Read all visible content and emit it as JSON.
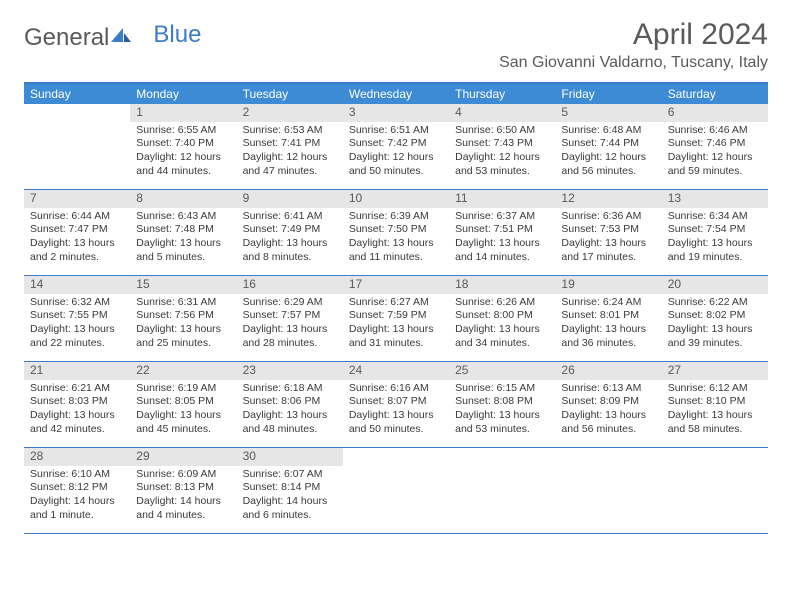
{
  "logo": {
    "text1": "General",
    "text2": "Blue"
  },
  "title": "April 2024",
  "location": "San Giovanni Valdarno, Tuscany, Italy",
  "colors": {
    "header_bar": "#3d8bd4",
    "border": "#3d7cc9",
    "daynum_bg": "#e6e6e6",
    "text_gray": "#5a5a5a",
    "body_text": "#3a3a3a",
    "white": "#ffffff"
  },
  "weekdays": [
    "Sunday",
    "Monday",
    "Tuesday",
    "Wednesday",
    "Thursday",
    "Friday",
    "Saturday"
  ],
  "weeks": [
    [
      null,
      {
        "n": "1",
        "sr": "6:55 AM",
        "ss": "7:40 PM",
        "dl": "12 hours and 44 minutes."
      },
      {
        "n": "2",
        "sr": "6:53 AM",
        "ss": "7:41 PM",
        "dl": "12 hours and 47 minutes."
      },
      {
        "n": "3",
        "sr": "6:51 AM",
        "ss": "7:42 PM",
        "dl": "12 hours and 50 minutes."
      },
      {
        "n": "4",
        "sr": "6:50 AM",
        "ss": "7:43 PM",
        "dl": "12 hours and 53 minutes."
      },
      {
        "n": "5",
        "sr": "6:48 AM",
        "ss": "7:44 PM",
        "dl": "12 hours and 56 minutes."
      },
      {
        "n": "6",
        "sr": "6:46 AM",
        "ss": "7:46 PM",
        "dl": "12 hours and 59 minutes."
      }
    ],
    [
      {
        "n": "7",
        "sr": "6:44 AM",
        "ss": "7:47 PM",
        "dl": "13 hours and 2 minutes."
      },
      {
        "n": "8",
        "sr": "6:43 AM",
        "ss": "7:48 PM",
        "dl": "13 hours and 5 minutes."
      },
      {
        "n": "9",
        "sr": "6:41 AM",
        "ss": "7:49 PM",
        "dl": "13 hours and 8 minutes."
      },
      {
        "n": "10",
        "sr": "6:39 AM",
        "ss": "7:50 PM",
        "dl": "13 hours and 11 minutes."
      },
      {
        "n": "11",
        "sr": "6:37 AM",
        "ss": "7:51 PM",
        "dl": "13 hours and 14 minutes."
      },
      {
        "n": "12",
        "sr": "6:36 AM",
        "ss": "7:53 PM",
        "dl": "13 hours and 17 minutes."
      },
      {
        "n": "13",
        "sr": "6:34 AM",
        "ss": "7:54 PM",
        "dl": "13 hours and 19 minutes."
      }
    ],
    [
      {
        "n": "14",
        "sr": "6:32 AM",
        "ss": "7:55 PM",
        "dl": "13 hours and 22 minutes."
      },
      {
        "n": "15",
        "sr": "6:31 AM",
        "ss": "7:56 PM",
        "dl": "13 hours and 25 minutes."
      },
      {
        "n": "16",
        "sr": "6:29 AM",
        "ss": "7:57 PM",
        "dl": "13 hours and 28 minutes."
      },
      {
        "n": "17",
        "sr": "6:27 AM",
        "ss": "7:59 PM",
        "dl": "13 hours and 31 minutes."
      },
      {
        "n": "18",
        "sr": "6:26 AM",
        "ss": "8:00 PM",
        "dl": "13 hours and 34 minutes."
      },
      {
        "n": "19",
        "sr": "6:24 AM",
        "ss": "8:01 PM",
        "dl": "13 hours and 36 minutes."
      },
      {
        "n": "20",
        "sr": "6:22 AM",
        "ss": "8:02 PM",
        "dl": "13 hours and 39 minutes."
      }
    ],
    [
      {
        "n": "21",
        "sr": "6:21 AM",
        "ss": "8:03 PM",
        "dl": "13 hours and 42 minutes."
      },
      {
        "n": "22",
        "sr": "6:19 AM",
        "ss": "8:05 PM",
        "dl": "13 hours and 45 minutes."
      },
      {
        "n": "23",
        "sr": "6:18 AM",
        "ss": "8:06 PM",
        "dl": "13 hours and 48 minutes."
      },
      {
        "n": "24",
        "sr": "6:16 AM",
        "ss": "8:07 PM",
        "dl": "13 hours and 50 minutes."
      },
      {
        "n": "25",
        "sr": "6:15 AM",
        "ss": "8:08 PM",
        "dl": "13 hours and 53 minutes."
      },
      {
        "n": "26",
        "sr": "6:13 AM",
        "ss": "8:09 PM",
        "dl": "13 hours and 56 minutes."
      },
      {
        "n": "27",
        "sr": "6:12 AM",
        "ss": "8:10 PM",
        "dl": "13 hours and 58 minutes."
      }
    ],
    [
      {
        "n": "28",
        "sr": "6:10 AM",
        "ss": "8:12 PM",
        "dl": "14 hours and 1 minute."
      },
      {
        "n": "29",
        "sr": "6:09 AM",
        "ss": "8:13 PM",
        "dl": "14 hours and 4 minutes."
      },
      {
        "n": "30",
        "sr": "6:07 AM",
        "ss": "8:14 PM",
        "dl": "14 hours and 6 minutes."
      },
      null,
      null,
      null,
      null
    ]
  ],
  "labels": {
    "sunrise": "Sunrise: ",
    "sunset": "Sunset: ",
    "daylight": "Daylight: "
  }
}
